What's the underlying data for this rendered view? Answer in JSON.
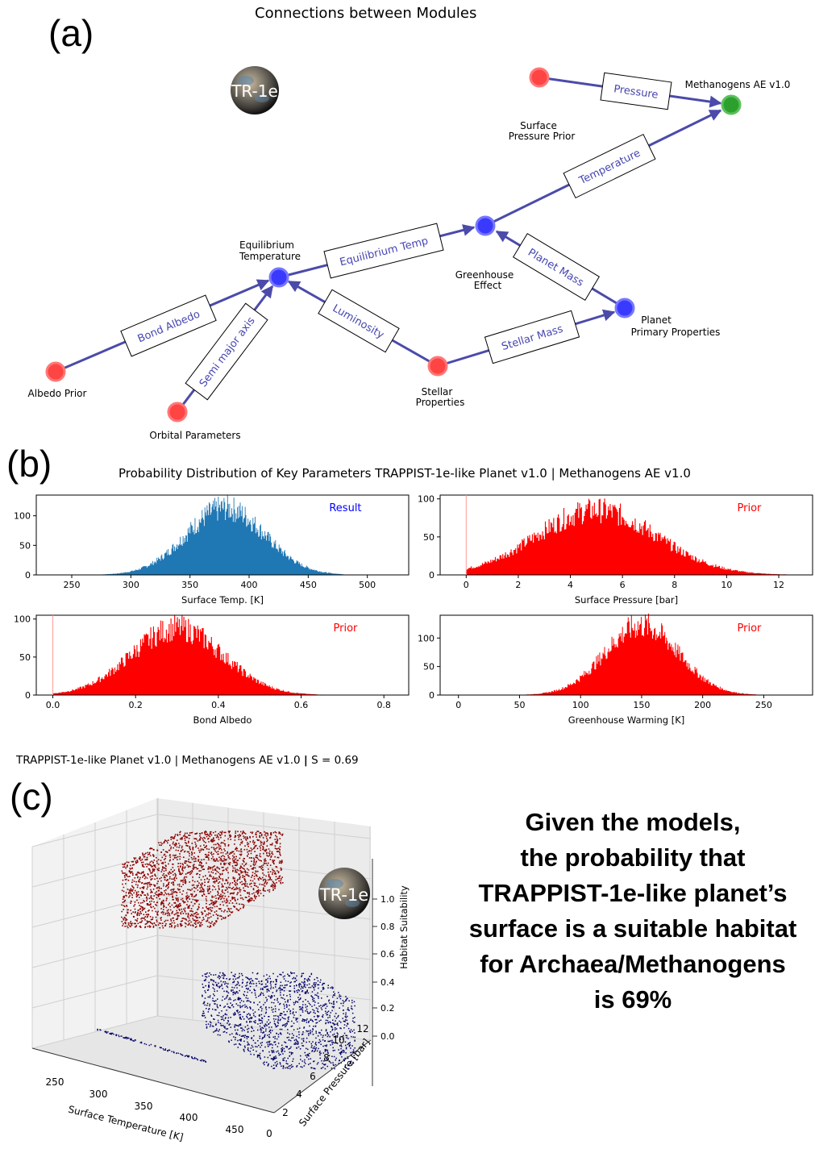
{
  "panel_a": {
    "letter": "(a)",
    "title": "Connections between Modules",
    "badge": "TR-1e",
    "nodes": [
      {
        "id": "albedo",
        "label": [
          "Albedo Prior"
        ],
        "color": "red"
      },
      {
        "id": "orbital",
        "label": [
          "Orbital Parameters"
        ],
        "color": "red"
      },
      {
        "id": "eqtemp",
        "label": [
          "Equilibrium",
          "Temperature"
        ],
        "color": "blue"
      },
      {
        "id": "stellar",
        "label": [
          "Stellar",
          "Properties"
        ],
        "color": "red"
      },
      {
        "id": "greenhouse",
        "label": [
          "Greenhouse",
          "Effect"
        ],
        "color": "blue"
      },
      {
        "id": "planet",
        "label": [
          "Planet",
          "Primary Properties"
        ],
        "color": "blue"
      },
      {
        "id": "pressure",
        "label": [
          "Surface",
          "Pressure Prior"
        ],
        "color": "red"
      },
      {
        "id": "methanogens",
        "label": [
          "Methanogens AE v1.0"
        ],
        "color": "green"
      }
    ],
    "edges": [
      {
        "label": "Bond Albedo"
      },
      {
        "label": "Semi major axis"
      },
      {
        "label": "Luminosity"
      },
      {
        "label": "Equilibrium Temp"
      },
      {
        "label": "Stellar Mass"
      },
      {
        "label": "Planet Mass"
      },
      {
        "label": "Temperature"
      },
      {
        "label": "Pressure"
      }
    ],
    "colors": {
      "red": "#ff4040",
      "blue": "#3a3aff",
      "green": "#2ca02c",
      "edge": "#4b4baa",
      "edge_text": "#4646b0"
    }
  },
  "panel_b": {
    "letter": "(b)",
    "title": "Probability Distribution of Key Parameters  TRAPPIST-1e-like Planet v1.0 | Methanogens AE v1.0"
  },
  "panel_c": {
    "letter": "(c)",
    "title_left": "TRAPPIST-1e-like Planet v1.0 | Methanogens AE v1.0 ",
    "title_sep": "|",
    "title_right": " S = 0.69",
    "badge": "TR-1e",
    "conclusion_lines": [
      "Given the models,",
      "the probability that",
      "TRAPPIST-1e-like planet’s",
      "surface  is a suitable habitat",
      "for Archaea/Methanogens",
      "is 69%"
    ]
  },
  "chart_data": [
    {
      "type": "bar",
      "tag": "Result",
      "tag_color": "#0000ff",
      "bar_color": "#1f77b4",
      "xlabel": "Surface Temp. [K]",
      "xlim": [
        220,
        535
      ],
      "ylim": [
        0,
        135
      ],
      "xticks": [
        250,
        300,
        350,
        400,
        450,
        500
      ],
      "yticks": [
        0,
        50,
        100
      ],
      "distribution": {
        "mean": 380,
        "sd": 33,
        "peak": 113,
        "range": [
          265,
          480
        ]
      }
    },
    {
      "type": "bar",
      "tag": "Prior",
      "tag_color": "#ff0000",
      "bar_color": "#ff0000",
      "xlabel": "Surface Pressure [bar]",
      "xlim": [
        -1,
        13.3
      ],
      "ylim": [
        0,
        105
      ],
      "xticks": [
        0,
        2,
        4,
        6,
        8,
        10,
        12
      ],
      "yticks": [
        0,
        50,
        100
      ],
      "distribution": {
        "mean": 5,
        "sd": 2.3,
        "peak": 85,
        "range": [
          0,
          12.8
        ]
      }
    },
    {
      "type": "bar",
      "tag": "Prior",
      "tag_color": "#ff0000",
      "bar_color": "#ff0000",
      "xlabel": "Bond Albedo",
      "xlim": [
        -0.04,
        0.86
      ],
      "ylim": [
        0,
        105
      ],
      "xticks": [
        0.0,
        0.2,
        0.4,
        0.6,
        0.8
      ],
      "tick_decimals": 1,
      "yticks": [
        0,
        50,
        100
      ],
      "distribution": {
        "mean": 0.3,
        "sd": 0.11,
        "peak": 88,
        "range": [
          0,
          0.8
        ]
      }
    },
    {
      "type": "bar",
      "tag": "Prior",
      "tag_color": "#ff0000",
      "bar_color": "#ff0000",
      "xlabel": "Greenhouse Warming [K]",
      "xlim": [
        -15,
        290
      ],
      "ylim": [
        0,
        140
      ],
      "xticks": [
        0,
        50,
        100,
        150,
        200,
        250
      ],
      "yticks": [
        0,
        50,
        100
      ],
      "distribution": {
        "mean": 150,
        "sd": 30,
        "peak": 122,
        "range": [
          30,
          270
        ]
      }
    },
    {
      "type": "scatter",
      "dimensions": 3,
      "xlabel": "Surface Temperature [K]",
      "ylabel": "Surface Pressure [bar]",
      "zlabel": "Habitat Suitability",
      "xticks": [
        250,
        300,
        350,
        400,
        450
      ],
      "yticks": [
        0,
        2,
        4,
        6,
        8,
        10,
        12
      ],
      "zticks": [
        "0.0",
        "0.2",
        "0.4",
        "0.6",
        "0.8",
        "1.0"
      ],
      "series": [
        {
          "color": "#8b0000",
          "z": 1.0
        },
        {
          "color": "#000066",
          "z": 0.0
        }
      ]
    }
  ]
}
